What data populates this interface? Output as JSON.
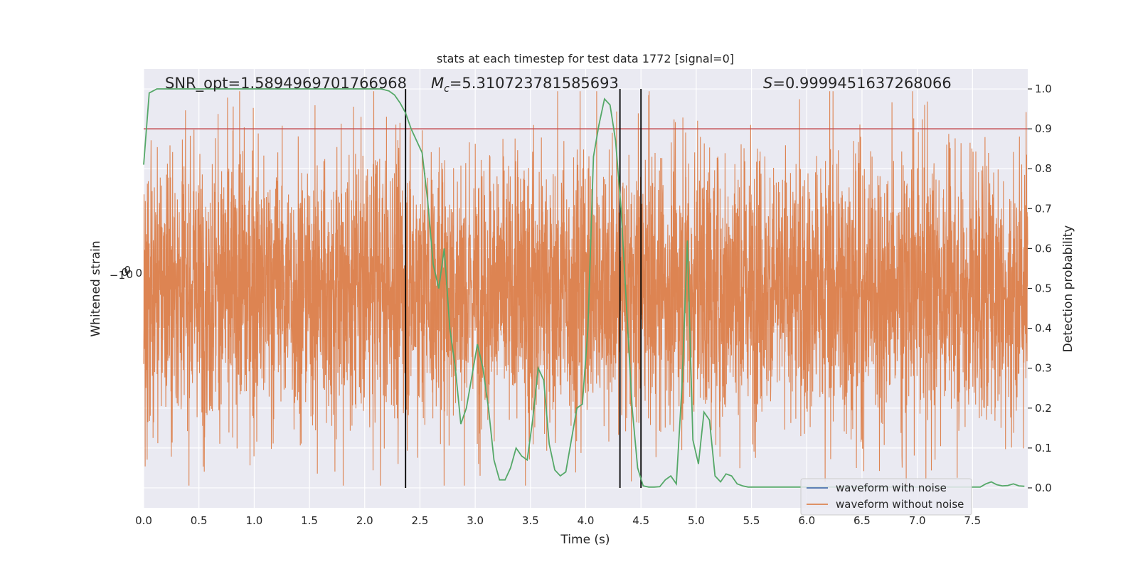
{
  "chart_data": {
    "type": "line",
    "title": "stats at each timestep for test data 1772 [signal=0]",
    "xlabel": "Time (s)",
    "ylabel_left": "Whitened strain",
    "ylabel_right": "Detection probability",
    "xlim": [
      0.0,
      8.0
    ],
    "ylim_right": [
      -0.05,
      1.05
    ],
    "x_ticks": [
      "0.0",
      "0.5",
      "1.0",
      "1.5",
      "2.0",
      "2.5",
      "3.0",
      "3.5",
      "4.0",
      "4.5",
      "5.0",
      "5.5",
      "6.0",
      "6.5",
      "7.0",
      "7.5"
    ],
    "x_tick_values": [
      0.0,
      0.5,
      1.0,
      1.5,
      2.0,
      2.5,
      3.0,
      3.5,
      4.0,
      4.5,
      5.0,
      5.5,
      6.0,
      6.5,
      7.0,
      7.5
    ],
    "y_right_ticks": [
      "0.0",
      "0.1",
      "0.2",
      "0.3",
      "0.4",
      "0.5",
      "0.6",
      "0.7",
      "0.8",
      "0.9",
      "1.0"
    ],
    "y_right_tick_values": [
      0.0,
      0.1,
      0.2,
      0.3,
      0.4,
      0.5,
      0.6,
      0.7,
      0.8,
      0.9,
      1.0
    ],
    "grid": true,
    "legend_position": "lower-right",
    "annotations": {
      "snr": "SNR_opt=1.5894969701766968",
      "mc_symbol": "M",
      "mc_sub": "c",
      "mc_value": "=5.310723781585693",
      "s_symbol": "S",
      "s_value": "=0.9999451637268066"
    },
    "threshold": 0.9,
    "vertical_lines_x": [
      2.37,
      4.31,
      4.5
    ],
    "series": [
      {
        "name": "waveform with noise",
        "color": "#4c72b0",
        "kind": "noise"
      },
      {
        "name": "waveform without noise",
        "color": "#dd8452",
        "kind": "strain"
      },
      {
        "color": "#55a868",
        "kind": "probability",
        "x": [
          0.0,
          0.05,
          0.12,
          0.2,
          0.4,
          0.6,
          0.8,
          1.0,
          1.2,
          1.4,
          1.6,
          1.8,
          2.0,
          2.15,
          2.22,
          2.27,
          2.32,
          2.37,
          2.42,
          2.47,
          2.52,
          2.57,
          2.62,
          2.67,
          2.72,
          2.77,
          2.82,
          2.87,
          2.92,
          2.97,
          3.02,
          3.07,
          3.12,
          3.17,
          3.22,
          3.27,
          3.32,
          3.37,
          3.42,
          3.47,
          3.52,
          3.57,
          3.62,
          3.67,
          3.72,
          3.77,
          3.82,
          3.87,
          3.92,
          3.97,
          4.02,
          4.07,
          4.12,
          4.17,
          4.22,
          4.27,
          4.32,
          4.37,
          4.42,
          4.47,
          4.52,
          4.57,
          4.62,
          4.67,
          4.72,
          4.77,
          4.82,
          4.87,
          4.92,
          4.97,
          5.02,
          5.07,
          5.12,
          5.17,
          5.22,
          5.27,
          5.32,
          5.37,
          5.42,
          5.47,
          5.52,
          5.57,
          5.62,
          5.67,
          5.72,
          5.77,
          5.82,
          5.87,
          5.92,
          5.97,
          6.02,
          6.07,
          6.12,
          6.2,
          6.4,
          6.6,
          6.8,
          7.0,
          7.2,
          7.4,
          7.47,
          7.52,
          7.57,
          7.62,
          7.67,
          7.72,
          7.77,
          7.82,
          7.87,
          7.92,
          7.97
        ],
        "y": [
          0.81,
          0.99,
          1.0,
          1.0,
          1.0,
          1.0,
          1.0,
          1.0,
          1.0,
          1.0,
          1.0,
          1.0,
          1.0,
          1.0,
          0.995,
          0.985,
          0.965,
          0.94,
          0.9,
          0.87,
          0.84,
          0.72,
          0.56,
          0.5,
          0.6,
          0.4,
          0.3,
          0.16,
          0.2,
          0.28,
          0.36,
          0.3,
          0.2,
          0.07,
          0.02,
          0.02,
          0.05,
          0.1,
          0.08,
          0.07,
          0.17,
          0.3,
          0.27,
          0.11,
          0.045,
          0.03,
          0.04,
          0.12,
          0.2,
          0.21,
          0.4,
          0.83,
          0.91,
          0.975,
          0.96,
          0.87,
          0.7,
          0.45,
          0.2,
          0.05,
          0.005,
          0.002,
          0.002,
          0.003,
          0.02,
          0.03,
          0.01,
          0.25,
          0.62,
          0.12,
          0.06,
          0.19,
          0.17,
          0.03,
          0.015,
          0.035,
          0.03,
          0.01,
          0.005,
          0.002,
          0.002,
          0.002,
          0.002,
          0.002,
          0.002,
          0.002,
          0.002,
          0.002,
          0.002,
          0.002,
          0.002,
          0.002,
          0.002,
          0.002,
          0.002,
          0.002,
          0.002,
          0.002,
          0.002,
          0.002,
          0.002,
          0.002,
          0.002,
          0.01,
          0.015,
          0.008,
          0.005,
          0.006,
          0.01,
          0.005,
          0.004
        ]
      }
    ]
  }
}
